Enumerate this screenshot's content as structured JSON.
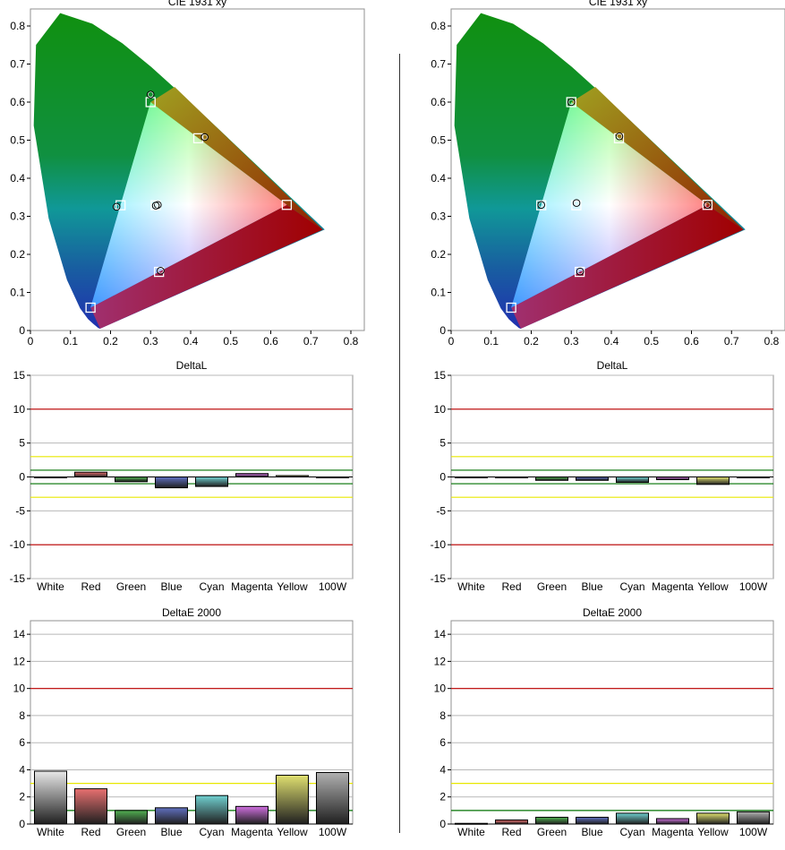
{
  "colors": {
    "red_line": "#c00000",
    "yellow_line": "#e8e800",
    "green_line": "#007000",
    "grid": "#b8b8b8",
    "white": "#e8e8e8",
    "red": "#e87070",
    "green": "#50b050",
    "blue": "#6070c0",
    "cyan": "#70d0d0",
    "magenta": "#d070e0",
    "yellow": "#e0e070",
    "w100": "#b0b0b0"
  },
  "chart_data": [
    {
      "id": "cie-left",
      "type": "scatter",
      "title": "CIE 1931 xy",
      "xlim": [
        0,
        0.85
      ],
      "ylim": [
        0,
        0.85
      ],
      "xticks": [
        "0",
        "0.1",
        "0.2",
        "0.3",
        "0.4",
        "0.5",
        "0.6",
        "0.7",
        "0.8"
      ],
      "yticks": [
        "0",
        "0.1",
        "0.2",
        "0.3",
        "0.4",
        "0.5",
        "0.6",
        "0.7",
        "0.8"
      ],
      "targets": [
        [
          0.64,
          0.33
        ],
        [
          0.3,
          0.6
        ],
        [
          0.15,
          0.06
        ],
        [
          0.225,
          0.329
        ],
        [
          0.321,
          0.154
        ],
        [
          0.419,
          0.505
        ],
        [
          0.3127,
          0.329
        ]
      ],
      "measured": [
        [
          0.3,
          0.62
        ],
        [
          0.435,
          0.508
        ],
        [
          0.215,
          0.325
        ],
        [
          0.318,
          0.33
        ],
        [
          0.313,
          0.328
        ],
        [
          0.325,
          0.157
        ]
      ]
    },
    {
      "id": "cie-right",
      "type": "scatter",
      "title": "CIE 1931 xy",
      "xlim": [
        0,
        0.85
      ],
      "ylim": [
        0,
        0.85
      ],
      "xticks": [
        "0",
        "0.1",
        "0.2",
        "0.3",
        "0.4",
        "0.5",
        "0.6",
        "0.7",
        "0.8"
      ],
      "yticks": [
        "0",
        "0.1",
        "0.2",
        "0.3",
        "0.4",
        "0.5",
        "0.6",
        "0.7",
        "0.8"
      ],
      "targets": [
        [
          0.64,
          0.33
        ],
        [
          0.3,
          0.6
        ],
        [
          0.15,
          0.06
        ],
        [
          0.225,
          0.329
        ],
        [
          0.321,
          0.154
        ],
        [
          0.419,
          0.505
        ],
        [
          0.3127,
          0.329
        ]
      ],
      "measured": [
        [
          0.3,
          0.6
        ],
        [
          0.42,
          0.51
        ],
        [
          0.225,
          0.33
        ],
        [
          0.313,
          0.335
        ],
        [
          0.322,
          0.155
        ],
        [
          0.64,
          0.33
        ]
      ]
    },
    {
      "id": "dl-left",
      "type": "bar",
      "title": "DeltaL",
      "categories": [
        "White",
        "Red",
        "Green",
        "Blue",
        "Cyan",
        "Magenta",
        "Yellow",
        "100W"
      ],
      "values": [
        -0.1,
        0.7,
        -0.7,
        -1.6,
        -1.4,
        0.5,
        0.2,
        -0.1
      ],
      "ylim": [
        -15,
        15
      ],
      "yticks": [
        "15",
        "10",
        "5",
        "0",
        "-5",
        "-10",
        "-15"
      ],
      "thresholds": {
        "red": [
          10,
          -10
        ],
        "yellow": [
          3,
          -3
        ],
        "green": [
          1,
          -1
        ]
      }
    },
    {
      "id": "dl-right",
      "type": "bar",
      "title": "DeltaL",
      "categories": [
        "White",
        "Red",
        "Green",
        "Blue",
        "Cyan",
        "Magenta",
        "Yellow",
        "100W"
      ],
      "values": [
        -0.05,
        -0.1,
        -0.5,
        -0.5,
        -0.8,
        -0.4,
        -1.1,
        -0.1
      ],
      "ylim": [
        -15,
        15
      ],
      "yticks": [
        "15",
        "10",
        "5",
        "0",
        "-5",
        "-10",
        "-15"
      ],
      "thresholds": {
        "red": [
          10,
          -10
        ],
        "yellow": [
          3,
          -3
        ],
        "green": [
          1,
          -1
        ]
      }
    },
    {
      "id": "de-left",
      "type": "bar",
      "title": "DeltaE 2000",
      "categories": [
        "White",
        "Red",
        "Green",
        "Blue",
        "Cyan",
        "Magenta",
        "Yellow",
        "100W"
      ],
      "values": [
        3.9,
        2.6,
        1.0,
        1.2,
        2.1,
        1.3,
        3.6,
        3.8
      ],
      "ylim": [
        0,
        15
      ],
      "yticks": [
        "14",
        "12",
        "10",
        "8",
        "6",
        "4",
        "2",
        "0"
      ],
      "thresholds": {
        "red": [
          10
        ],
        "yellow": [
          3
        ],
        "green": [
          1
        ]
      }
    },
    {
      "id": "de-right",
      "type": "bar",
      "title": "DeltaE 2000",
      "categories": [
        "White",
        "Red",
        "Green",
        "Blue",
        "Cyan",
        "Magenta",
        "Yellow",
        "100W"
      ],
      "values": [
        0.05,
        0.3,
        0.5,
        0.5,
        0.8,
        0.4,
        0.8,
        0.9
      ],
      "ylim": [
        0,
        15
      ],
      "yticks": [
        "14",
        "12",
        "10",
        "8",
        "6",
        "4",
        "2",
        "0"
      ],
      "thresholds": {
        "red": [
          10
        ],
        "yellow": [
          3
        ],
        "green": [
          1
        ]
      }
    }
  ]
}
